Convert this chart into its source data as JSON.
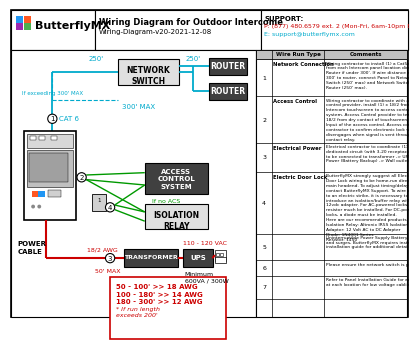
{
  "title": "Wiring Diagram for Outdoor Intercome",
  "subtitle": "Wiring-Diagram-v20-2021-12-08",
  "support_title": "SUPPORT:",
  "support_phone": "P: (877) 480.6579 ext. 2 (Mon-Fri, 6am-10pm EST)",
  "support_email": "E: support@butterflymx.com",
  "bg_color": "#ffffff",
  "table_rows": [
    {
      "num": "1",
      "type": "Network Connection",
      "comment": "Wiring contractor to install (1) a Cat5e/Cat6\nfrom each Intercom panel location directly to\nRouter if under 300'. If wire distance exceeds\n300' to router, connect Panel to Network\nSwitch (250' max) and Network Switch to\nRouter (250' max)."
    },
    {
      "num": "2",
      "type": "Access Control",
      "comment": "Wiring contractor to coordinate with access\ncontrol provider, install (1) x 18/2 from each\nIntercom touchscreen to access controller\nsystem. Access Control provider to terminate\n18/2 from dry contact of touchscreen to REX\nInput of the access control. Access control\ncontractor to confirm electronic lock will\ndisengages when signal is sent through dry\ncontact relay."
    },
    {
      "num": "3",
      "type": "Electrical Power",
      "comment": "Electrical contractor to coordinate (1)\ndedicated circuit (with 3-20 receptacle). Panel\nto be connected to transformer -> UPS\nPower (Battery Backup) -> Wall outlet"
    },
    {
      "num": "4",
      "type": "Electric Door Lock",
      "comment": "ButterflyMX strongly suggest all Electrical\nDoor Lock wiring to be home-run directly to\nmain headend. To adjust timing/delay,\ncontact ButterflyMX Support. To wire directly\nto an electric strike, it is necessary to\nintroduce an isolation/buffer relay with a\n12vdc adapter. For AC-powered locks, a\nresistor much be installed. For DC-powered\nlocks, a diode must be installed.\nHere are our recommended products:\nIsolation Relay: Altronix IR5S Isolation Relay\nAdaptor: 12 Volt AC to DC Adapter\nDiode: 1N4001 Series\nResistor: 1450"
    },
    {
      "num": "5",
      "type": "",
      "comment": "Uninterruptible Power Supply Battery Backup. To prevent voltage drops\nand surges, ButterflyMX requires installing a UPS device (see panel\ninstallation guide for additional details)."
    },
    {
      "num": "6",
      "type": "",
      "comment": "Please ensure the network switch is properly grounded."
    },
    {
      "num": "7",
      "type": "",
      "comment": "Refer to Panel Installation Guide for additional details. Leave 6' service loop\nat each location for low voltage cabling."
    }
  ],
  "cyan": "#00aacc",
  "green": "#009900",
  "red": "#cc0000",
  "dark_box": "#404040",
  "light_box": "#e0e0e0",
  "logo_blue": "#2196F3",
  "logo_orange": "#FF5722",
  "logo_purple": "#9C27B0",
  "logo_green": "#4CAF50"
}
